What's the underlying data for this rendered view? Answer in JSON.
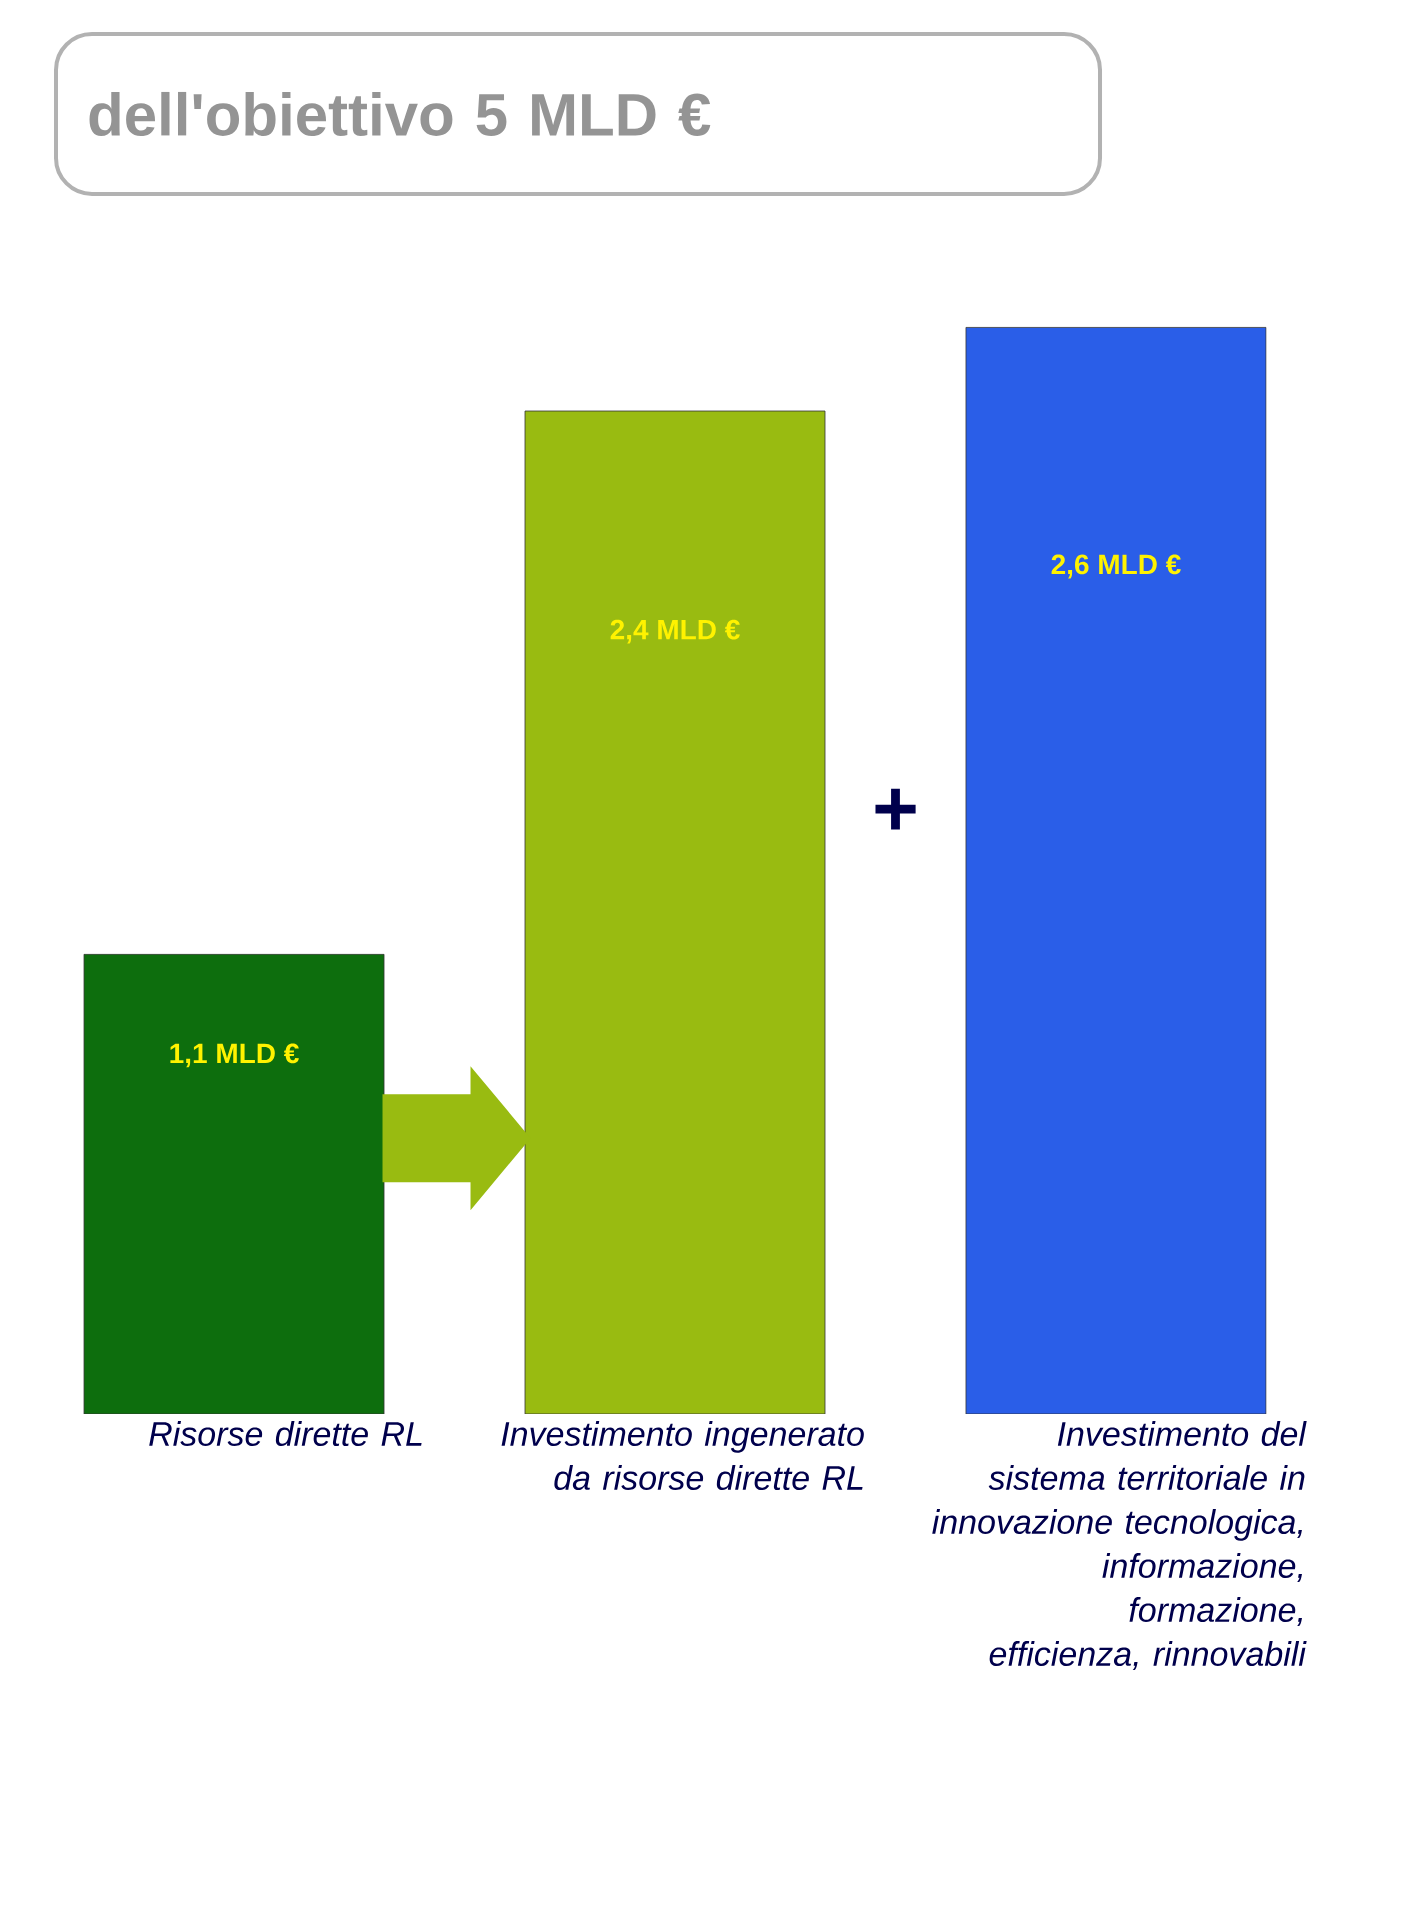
{
  "chart_data": {
    "type": "bar",
    "title": "dell'obiettivo 5 MLD €",
    "categories": [
      "Risorse dirette RL",
      "Investimento ingenerato da risorse dirette RL",
      "Investimento del sistema territoriale in innovazione tecnologica, informazione, formazione, efficienza, rinnovabili"
    ],
    "values": [
      1.1,
      2.4,
      2.6
    ],
    "colors": [
      "#0d6e0d",
      "#99bb11",
      "#2a5ee8"
    ],
    "value_labels": [
      "1,1 MLD €",
      "2,4 MLD €",
      "2,6 MLD €"
    ],
    "annotations": [
      "+"
    ]
  }
}
